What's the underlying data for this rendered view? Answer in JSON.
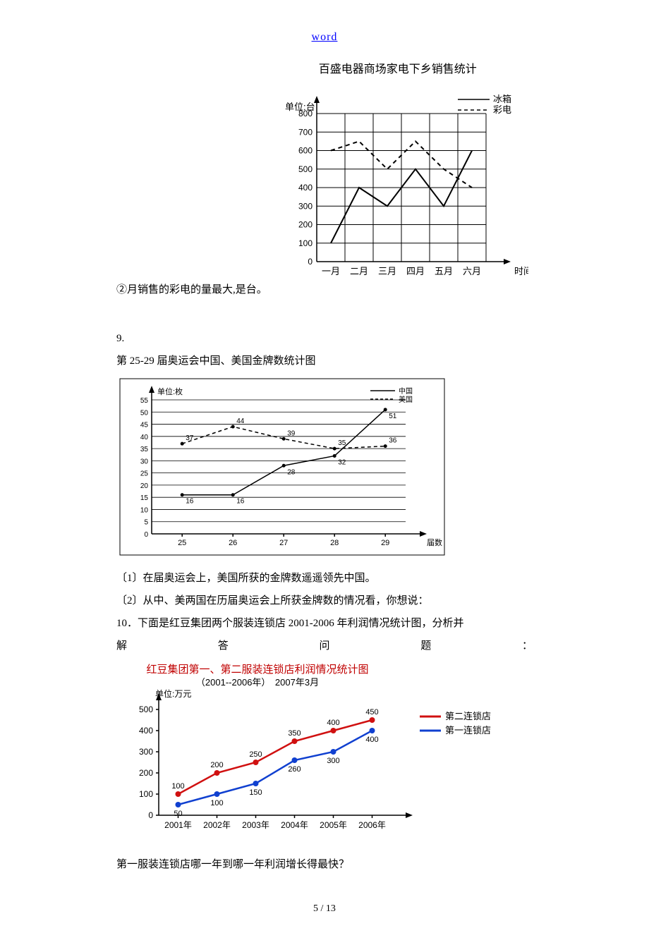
{
  "header": {
    "link": "word"
  },
  "q8": {
    "note": "②月销售的彩电的量最大,是台。",
    "chart": {
      "title": "百盛电器商场家电下乡销售统计",
      "y_label": "单位:台",
      "x_label": "时间",
      "legend": {
        "solid": "冰箱",
        "dashed": "彩电"
      },
      "y_ticks": [
        "0",
        "100",
        "200",
        "300",
        "400",
        "500",
        "600",
        "700",
        "800"
      ],
      "x_ticks": [
        "一月",
        "二月",
        "三月",
        "四月",
        "五月",
        "六月"
      ],
      "series_solid": [
        100,
        400,
        300,
        500,
        300,
        600
      ],
      "series_dashed": [
        600,
        650,
        500,
        650,
        500,
        400
      ]
    }
  },
  "q9": {
    "num": "9.",
    "title": "第 25-29 届奥运会中国、美国金牌数统计图",
    "y_label": "单位:枚",
    "x_label": "届数",
    "legend": {
      "solid": "中国",
      "dashed": "美国"
    },
    "y_ticks": [
      "0",
      "5",
      "10",
      "15",
      "20",
      "25",
      "30",
      "35",
      "40",
      "45",
      "50",
      "55"
    ],
    "x_ticks": [
      "25",
      "26",
      "27",
      "28",
      "29"
    ],
    "china": [
      16,
      16,
      28,
      32,
      51
    ],
    "usa": [
      37,
      44,
      39,
      35,
      36
    ],
    "china_labels": [
      "16",
      "16",
      "28",
      "32",
      "51"
    ],
    "usa_labels": [
      "37",
      "44",
      "39",
      "35",
      "36"
    ],
    "sub1": "〔1〕在届奥运会上，美国所获的金牌数遥遥领先中国。",
    "sub2": "〔2〕从中、美两国在历届奥运会上所获金牌数的情况看，你想说："
  },
  "q10": {
    "intro": "10．下面是红豆集团两个服装连锁店 2001-2006 年利润情况统计图，分析并",
    "intro2_parts": [
      "解",
      "答",
      "问",
      "题",
      "："
    ],
    "chart_title": "红豆集团第一、第二服装连锁店利润情况统计图",
    "chart_sub": "（2001--2006年）　2007年3月",
    "y_label": "单位:万元",
    "legend": {
      "red": "第二连锁店",
      "blue": "第一连锁店"
    },
    "y_ticks": [
      "0",
      "100",
      "200",
      "300",
      "400",
      "500"
    ],
    "x_ticks": [
      "2001年",
      "2002年",
      "2003年",
      "2004年",
      "2005年",
      "2006年"
    ],
    "red_vals": [
      100,
      200,
      250,
      350,
      400,
      450
    ],
    "blue_vals": [
      50,
      100,
      150,
      260,
      300,
      400
    ],
    "question": "第一服装连锁店哪一年到哪一年利润增长得最快？"
  },
  "footer": {
    "page": "5 / 13"
  }
}
